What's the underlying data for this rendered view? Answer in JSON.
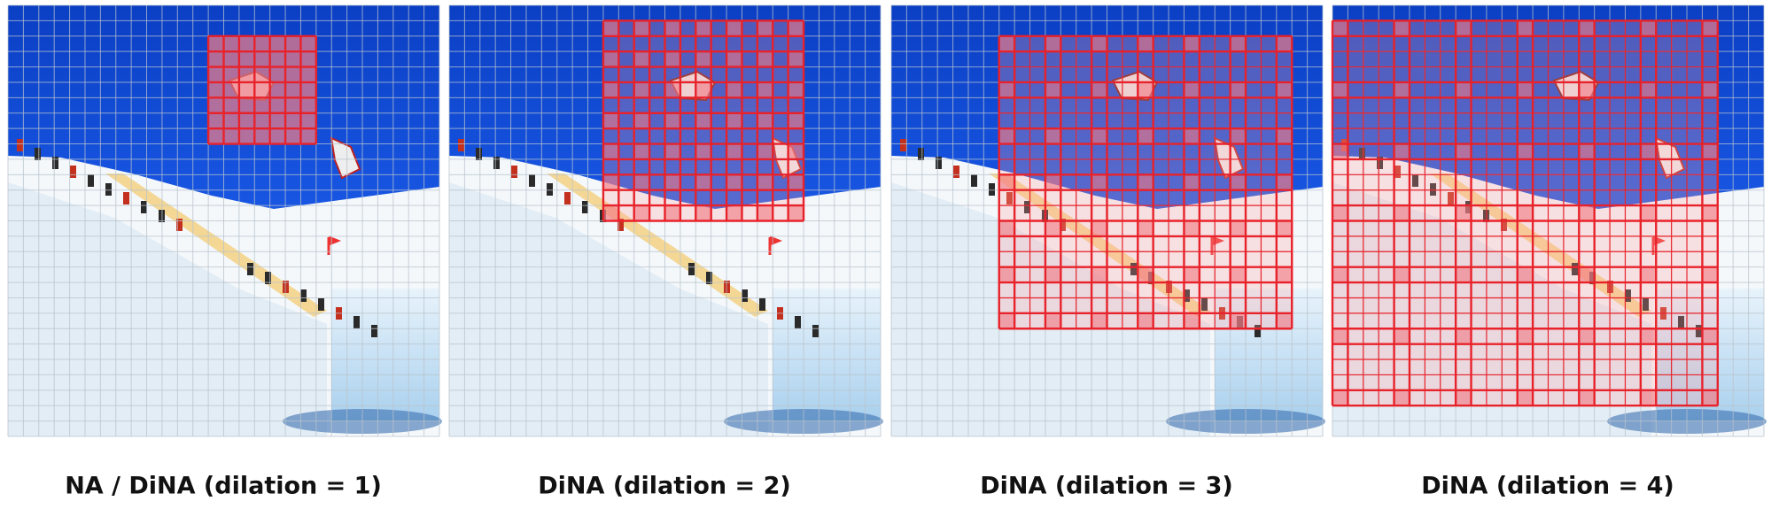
{
  "captions": [
    "NA / DiNA (dilation = 1)",
    "DiNA (dilation = 2)",
    "DiNA (dilation = 3)",
    "DiNA (dilation = 4)"
  ]
}
